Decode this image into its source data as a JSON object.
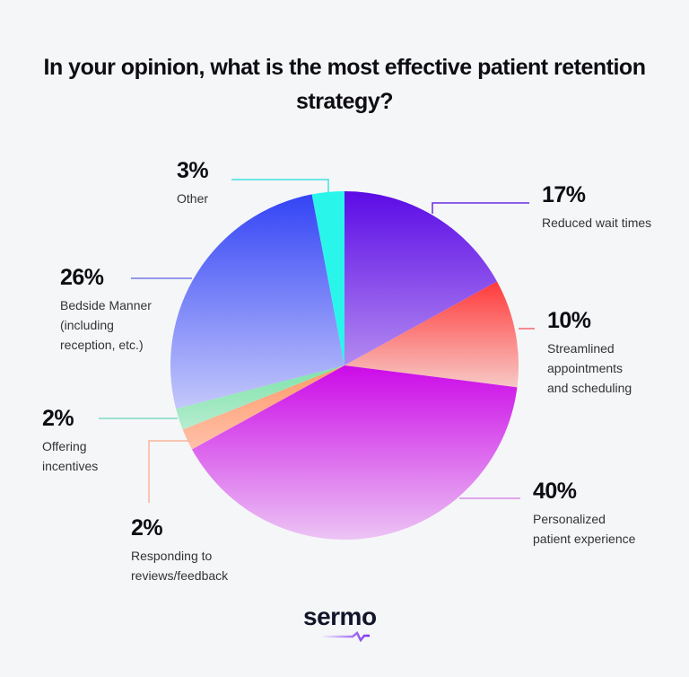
{
  "chart_data": {
    "type": "pie",
    "title": "In your opinion, what is the most effective patient retention strategy?",
    "start_angle": "top",
    "direction": "clockwise",
    "slices": [
      {
        "label": "Reduced wait times",
        "value": 17,
        "display": "17%",
        "colors": [
          "#5b0be6",
          "#b38af0"
        ],
        "line_color": "#6a2be0"
      },
      {
        "label": "Streamlined appointments and scheduling",
        "value": 10,
        "display": "10%",
        "colors": [
          "#ff3a3a",
          "#f7c9c6"
        ],
        "line_color": "#f06a6a"
      },
      {
        "label": "Personalized patient experience",
        "value": 40,
        "display": "40%",
        "colors": [
          "#cc0ae8",
          "#ecc4f4"
        ],
        "line_color": "#d98be8"
      },
      {
        "label": "Responding to reviews/feedback",
        "value": 2,
        "display": "2%",
        "colors": [
          "#ff9a6a",
          "#ffc0a8"
        ],
        "line_color": "#f8b59a"
      },
      {
        "label": "Offering incentives",
        "value": 2,
        "display": "2%",
        "colors": [
          "#7de3a8",
          "#b5ecd0"
        ],
        "line_color": "#7fdcc0"
      },
      {
        "label": "Bedside Manner (including reception, etc.)",
        "value": 26,
        "display": "26%",
        "colors": [
          "#3344f5",
          "#c4c8fb"
        ],
        "line_color": "#6f78e8"
      },
      {
        "label": "Other",
        "value": 3,
        "display": "3%",
        "colors": [
          "#2af5ea",
          "#2af5ea"
        ],
        "line_color": "#40e0dc"
      }
    ]
  },
  "labels": {
    "s0": {
      "pct": "17%",
      "lines": [
        "Reduced wait times"
      ]
    },
    "s1": {
      "pct": "10%",
      "lines": [
        "Streamlined",
        "appointments",
        "and scheduling"
      ]
    },
    "s2": {
      "pct": "40%",
      "lines": [
        "Personalized",
        "patient experience"
      ]
    },
    "s3": {
      "pct": "2%",
      "lines": [
        "Responding to",
        "reviews/feedback"
      ]
    },
    "s4": {
      "pct": "2%",
      "lines": [
        "Offering",
        "incentives"
      ]
    },
    "s5": {
      "pct": "26%",
      "lines": [
        "Bedside Manner",
        "(including",
        "reception, etc.)"
      ]
    },
    "s6": {
      "pct": "3%",
      "lines": [
        "Other"
      ]
    }
  },
  "logo": {
    "text": "sermo",
    "accent": "#7b2ff0"
  }
}
